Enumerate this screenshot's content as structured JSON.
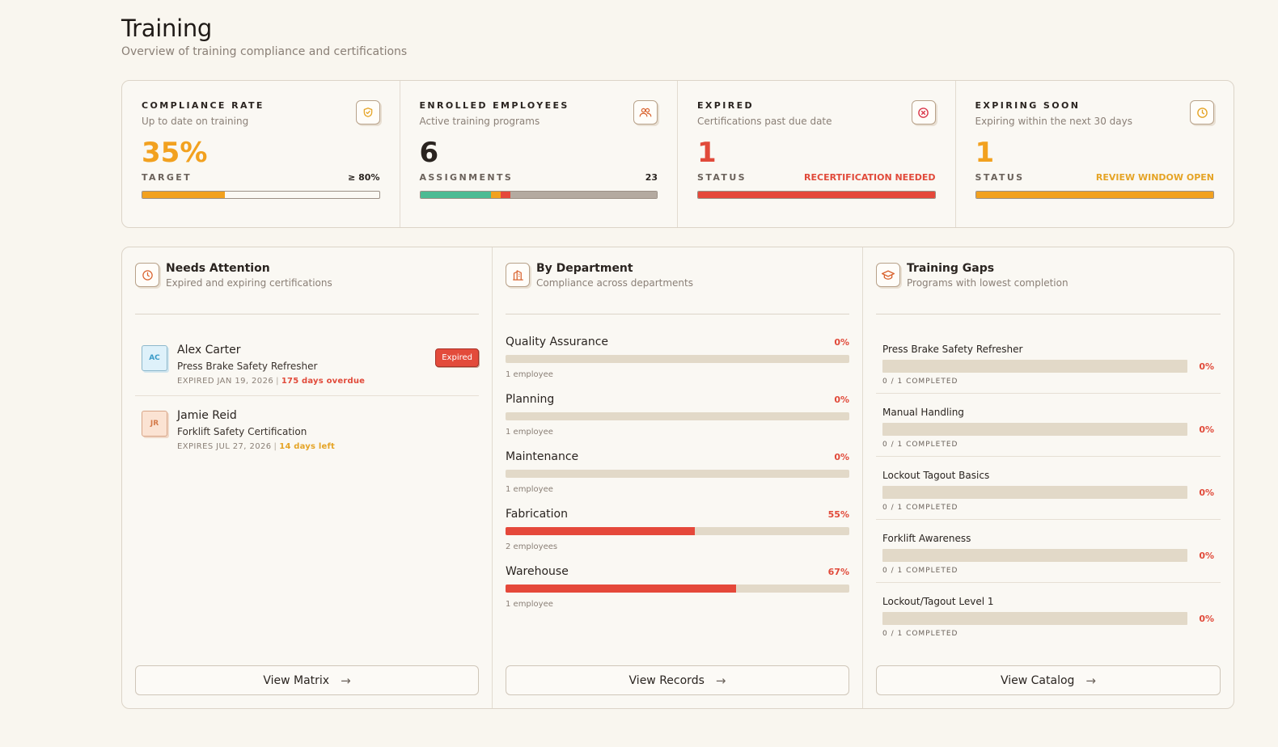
{
  "header": {
    "title": "Training",
    "subtitle": "Overview of training compliance and certifications"
  },
  "stats": [
    {
      "label": "COMPLIANCE RATE",
      "desc": "Up to date on training",
      "value": "35%",
      "row_label": "TARGET",
      "row_value": "≥ 80%",
      "icon": "shield-check-icon",
      "accent": "#f2a11f",
      "progress": 0.35
    },
    {
      "label": "ENROLLED EMPLOYEES",
      "desc": "Active training programs",
      "value": "6",
      "row_label": "ASSIGNMENTS",
      "row_value": "23",
      "icon": "users-icon",
      "accent": "#2a2420",
      "segments": [
        {
          "color": "#4dbb93",
          "fraction": 0.3
        },
        {
          "color": "#f2a11f",
          "fraction": 0.04
        },
        {
          "color": "#e5483a",
          "fraction": 0.04
        },
        {
          "color": "#b4aaa0",
          "fraction": 0.62
        }
      ]
    },
    {
      "label": "EXPIRED",
      "desc": "Certifications past due date",
      "value": "1",
      "row_label": "STATUS",
      "row_value": "RECERTIFICATION NEEDED",
      "icon": "x-circle-icon",
      "accent": "#e14a3a",
      "progress": 1.0
    },
    {
      "label": "EXPIRING SOON",
      "desc": "Expiring within the next 30 days",
      "value": "1",
      "row_label": "STATUS",
      "row_value": "REVIEW WINDOW OPEN",
      "icon": "clock-icon",
      "accent": "#f2a11f",
      "progress": 1.0
    }
  ],
  "attention": {
    "title": "Needs Attention",
    "desc": "Expired and expiring certifications",
    "footer": "View Matrix",
    "items": [
      {
        "initials": "AC",
        "name": "Alex Carter",
        "course": "Press Brake Safety Refresher",
        "meta": "EXPIRED JAN 19, 2026",
        "sep": "|",
        "note": "175 days overdue",
        "badge": "Expired"
      },
      {
        "initials": "JR",
        "name": "Jamie Reid",
        "course": "Forklift Safety Certification",
        "meta": "EXPIRES JUL 27, 2026",
        "sep": "|",
        "note": "14 days left"
      }
    ]
  },
  "departments": {
    "title": "By Department",
    "desc": "Compliance across departments",
    "footer": "View Records",
    "items": [
      {
        "name": "Quality Assurance",
        "pct": "0%",
        "value": 0,
        "count": "1 employee"
      },
      {
        "name": "Planning",
        "pct": "0%",
        "value": 0,
        "count": "1 employee"
      },
      {
        "name": "Maintenance",
        "pct": "0%",
        "value": 0,
        "count": "1 employee"
      },
      {
        "name": "Fabrication",
        "pct": "55%",
        "value": 55,
        "count": "2 employees"
      },
      {
        "name": "Warehouse",
        "pct": "67%",
        "value": 67,
        "count": "1 employee"
      }
    ]
  },
  "gaps": {
    "title": "Training Gaps",
    "desc": "Programs with lowest completion",
    "footer": "View Catalog",
    "items": [
      {
        "name": "Press Brake Safety Refresher",
        "pct": "0%",
        "value": 0,
        "count": "0 / 1 COMPLETED"
      },
      {
        "name": "Manual Handling",
        "pct": "0%",
        "value": 0,
        "count": "0 / 1 COMPLETED"
      },
      {
        "name": "Lockout Tagout Basics",
        "pct": "0%",
        "value": 0,
        "count": "0 / 1 COMPLETED"
      },
      {
        "name": "Forklift Awareness",
        "pct": "0%",
        "value": 0,
        "count": "0 / 1 COMPLETED"
      },
      {
        "name": "Lockout/Tagout Level 1",
        "pct": "0%",
        "value": 0,
        "count": "0 / 1 COMPLETED"
      }
    ]
  }
}
